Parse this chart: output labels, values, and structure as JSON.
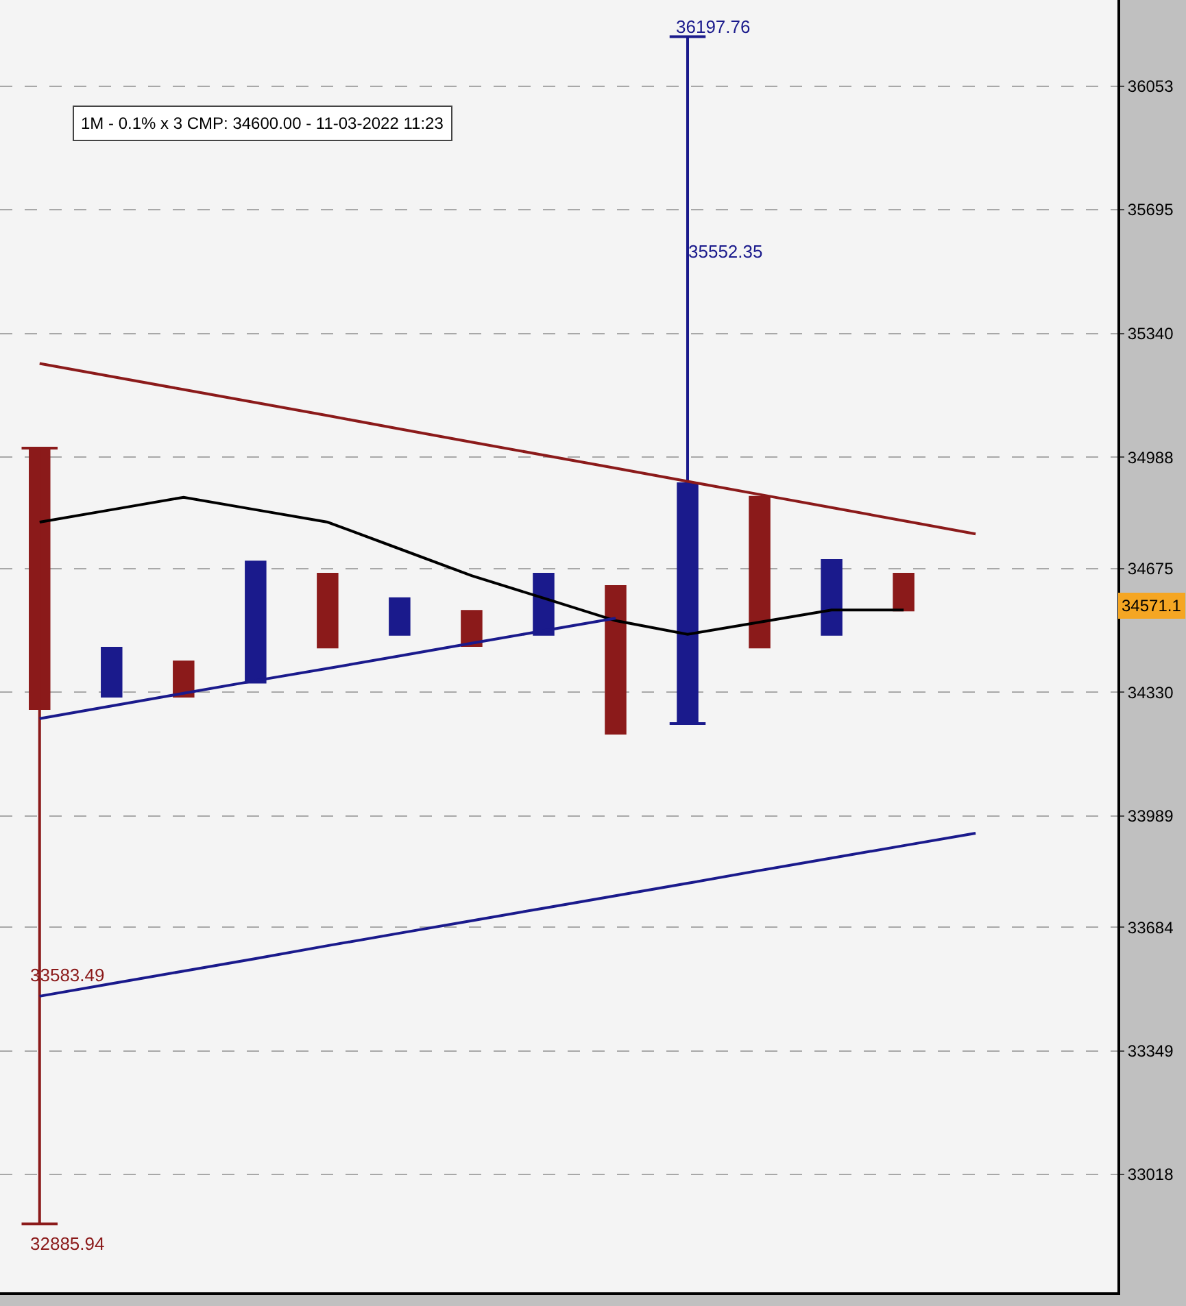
{
  "chart_data": {
    "type": "bar",
    "categories": [
      null,
      null,
      null,
      null,
      null,
      null,
      null,
      null,
      null,
      null,
      null,
      null,
      null,
      null,
      null
    ],
    "ylim": [
      32705,
      36305
    ],
    "log": "y",
    "tick_labels": "y",
    "grid": "y",
    "yticks": [
      33018,
      33349,
      33684,
      33989,
      34330,
      34675,
      34988,
      35340,
      35695,
      36053
    ],
    "series": [
      {
        "colors": [
          "#8b1a1a",
          "#1a1a8c",
          "#8b1a1a",
          "#1a1a8c",
          "#8b1a1a",
          "#1a1a8c",
          "#8b1a1a",
          "#1a1a8c",
          "#8b1a1a",
          "#1a1a8c",
          "#8b1a1a",
          "#1a1a8c",
          "#8b1a1a",
          null,
          null
        ],
        "base": [
          34281,
          34315,
          34315,
          34354,
          34452,
          34487,
          34456,
          34487,
          34213,
          34243,
          34452,
          34487,
          34555,
          null,
          null
        ],
        "values": [
          733,
          141,
          103,
          343,
          211,
          107,
          103,
          176,
          415,
          674,
          427,
          214,
          108,
          null,
          null
        ],
        "errors": [
          [
            32885.94,
            35014
          ],
          null,
          null,
          null,
          null,
          null,
          null,
          null,
          null,
          [
            34243,
            36197.76
          ],
          null,
          null,
          null,
          null,
          null
        ]
      },
      {
        "type": "line",
        "color": "#8b1a1a",
        "values": [
          35254,
          35217,
          35180,
          35143,
          35106,
          35068,
          35031,
          34994,
          34957,
          34920,
          34883,
          34846,
          34809,
          34772,
          null
        ]
      },
      {
        "type": "line",
        "color": "#000000",
        "values": [
          34805,
          34840,
          34875,
          34840,
          34805,
          34730,
          34655,
          34592,
          34529,
          34491,
          34525,
          34559,
          34559,
          null,
          null
        ]
      },
      {
        "type": "line",
        "color": "#1a1a8c",
        "values": [
          34257,
          34292,
          34327,
          34362,
          34396,
          34431,
          34466,
          34501,
          34536,
          null,
          null,
          null,
          null,
          null,
          null
        ]
      },
      {
        "type": "line",
        "color": "#1a1a8c",
        "values": [
          33497,
          33531,
          33565,
          33599,
          33634,
          33668,
          33702,
          33736,
          33770,
          33804,
          33839,
          33873,
          33907,
          33941,
          null
        ]
      }
    ],
    "annotations": [
      "1M - 0.1% x 3 CMP: 34600.00 - 11-03-2022 11:23",
      "33583.49",
      "32885.94",
      "35552.35",
      "36197.76",
      "34571.1"
    ]
  }
}
